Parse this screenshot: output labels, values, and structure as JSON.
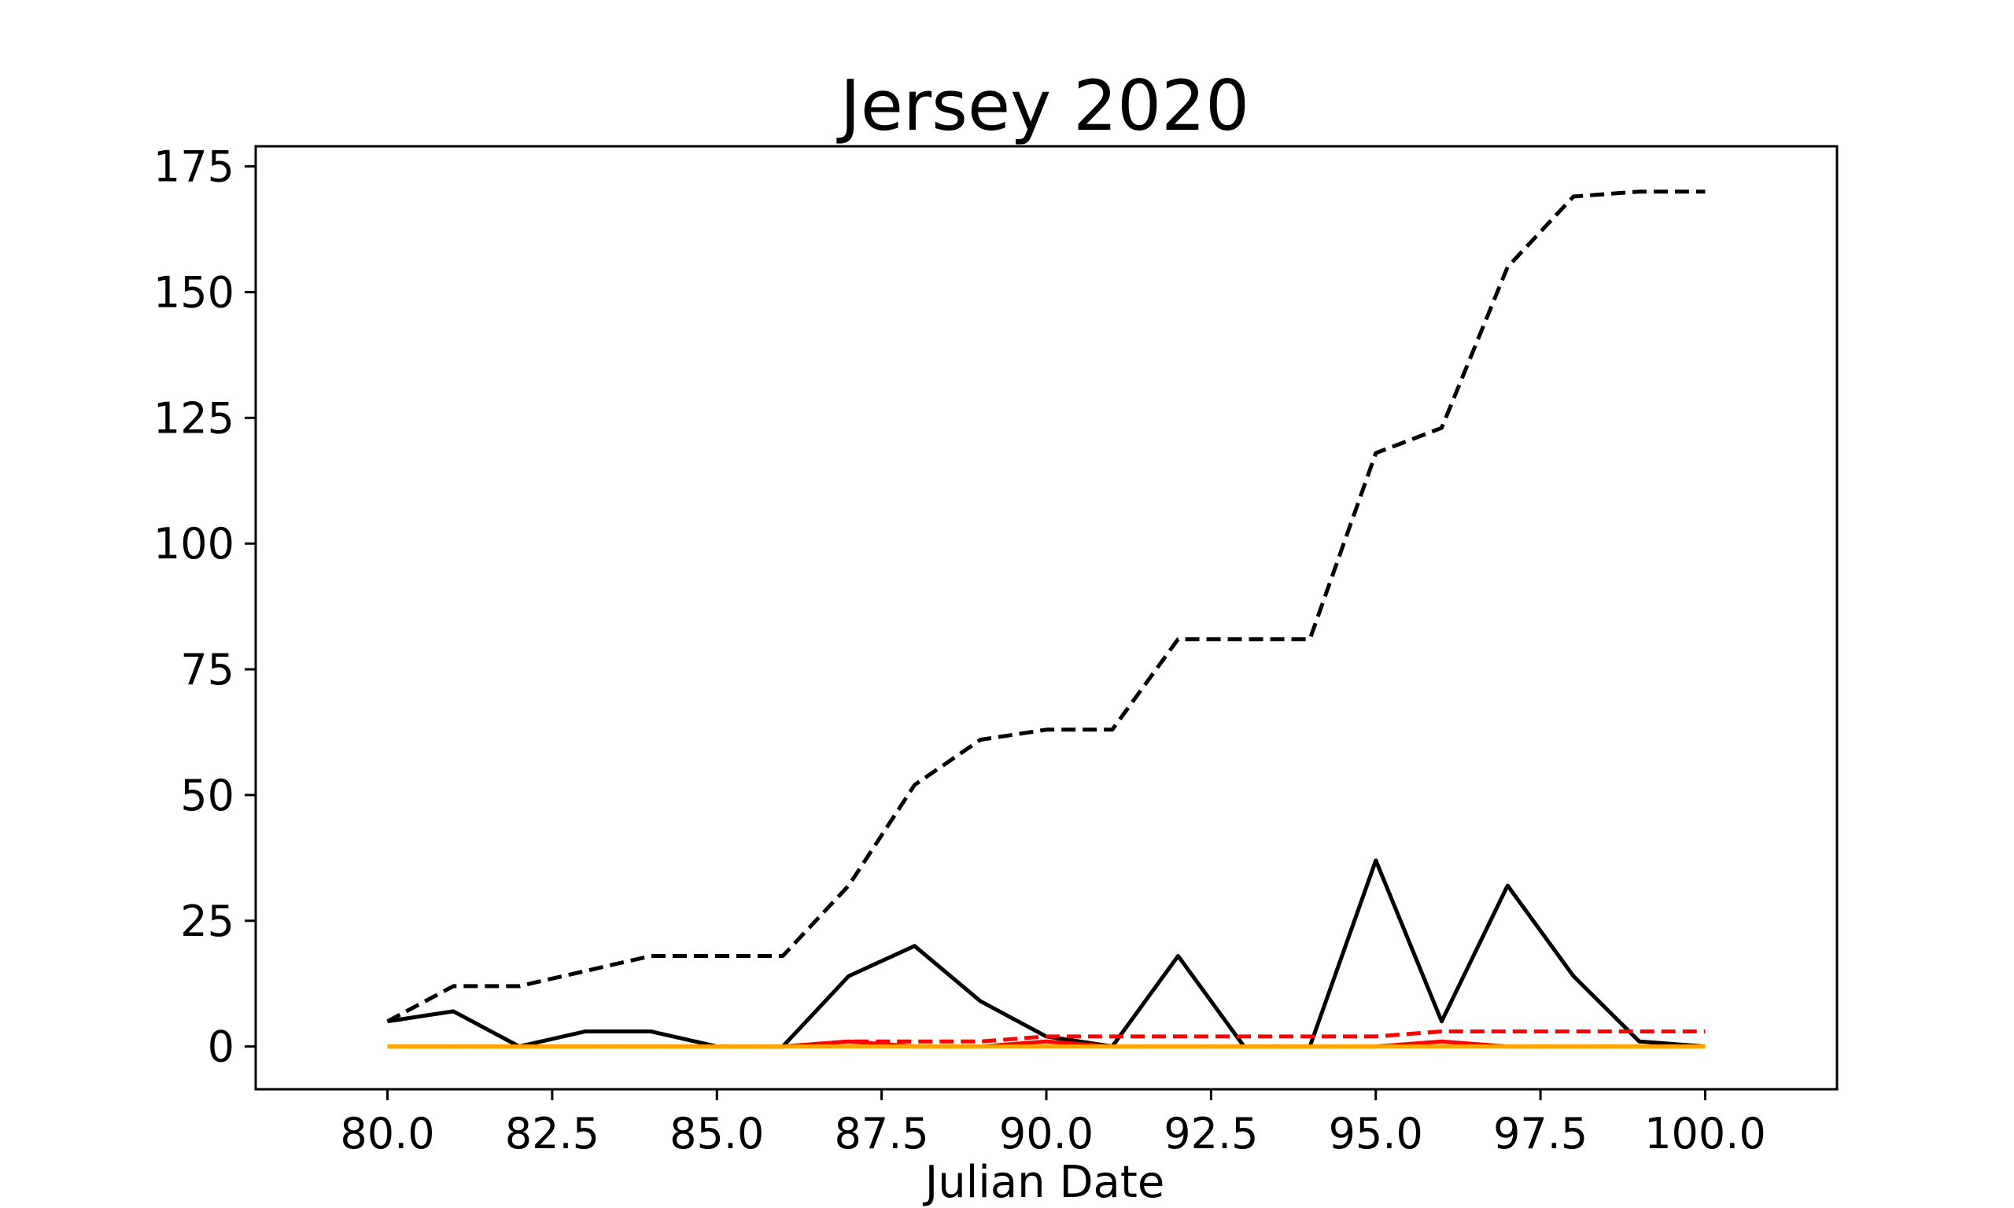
{
  "chart_data": {
    "type": "line",
    "title": "Jersey 2020",
    "xlabel": "Julian Date",
    "ylabel": "",
    "xlim": [
      78,
      102
    ],
    "ylim": [
      -8.5,
      179
    ],
    "xticks": [
      "80.0",
      "82.5",
      "85.0",
      "87.5",
      "90.0",
      "92.5",
      "95.0",
      "97.5",
      "100.0"
    ],
    "yticks": [
      "0",
      "25",
      "50",
      "75",
      "100",
      "125",
      "150",
      "175"
    ],
    "grid": false,
    "legend": "none",
    "x": [
      80,
      81,
      82,
      83,
      84,
      85,
      86,
      87,
      88,
      89,
      90,
      91,
      92,
      93,
      94,
      95,
      96,
      97,
      98,
      99,
      100
    ],
    "series": [
      {
        "color": "#000000",
        "style": "dashed",
        "values": [
          5,
          12,
          12,
          15,
          18,
          18,
          18,
          32,
          52,
          61,
          63,
          63,
          81,
          81,
          81,
          118,
          123,
          155,
          169,
          170,
          170
        ]
      },
      {
        "color": "#000000",
        "style": "solid",
        "values": [
          5,
          7,
          0,
          3,
          3,
          0,
          0,
          14,
          20,
          9,
          2,
          0,
          18,
          0,
          0,
          37,
          5,
          32,
          14,
          1,
          0
        ]
      },
      {
        "color": "#ff0000",
        "style": "dashed",
        "values": [
          0,
          0,
          0,
          0,
          0,
          0,
          0,
          1,
          1,
          1,
          2,
          2,
          2,
          2,
          2,
          2,
          3,
          3,
          3,
          3,
          3
        ]
      },
      {
        "color": "#ff0000",
        "style": "solid",
        "values": [
          0,
          0,
          0,
          0,
          0,
          0,
          0,
          1,
          0,
          0,
          1,
          0,
          0,
          0,
          0,
          0,
          1,
          0,
          0,
          0,
          0
        ]
      },
      {
        "color": "#ffa500",
        "style": "dashed",
        "values": [
          0,
          0,
          0,
          0,
          0,
          0,
          0,
          0,
          0,
          0,
          0,
          0,
          0,
          0,
          0,
          0,
          0,
          0,
          0,
          0,
          0
        ]
      },
      {
        "color": "#ffa500",
        "style": "solid",
        "values": [
          0,
          0,
          0,
          0,
          0,
          0,
          0,
          0,
          0,
          0,
          0,
          0,
          0,
          0,
          0,
          0,
          0,
          0,
          0,
          0,
          0
        ]
      }
    ]
  }
}
